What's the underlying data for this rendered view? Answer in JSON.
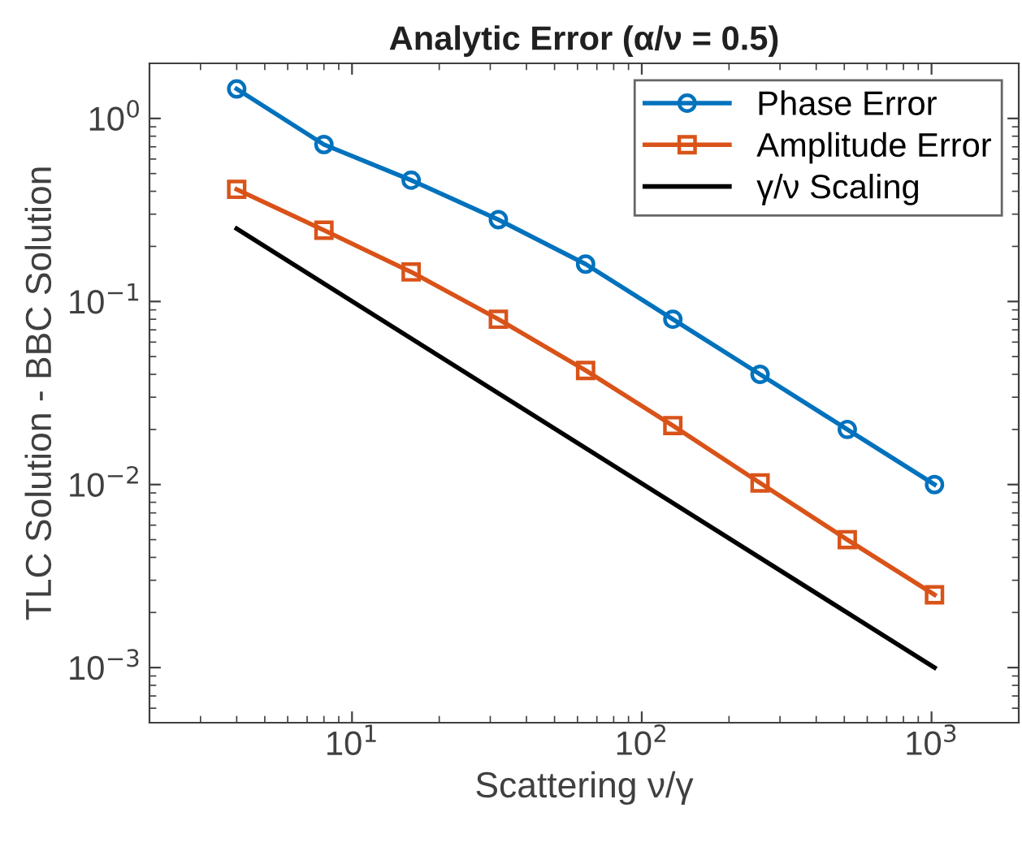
{
  "chart_data": {
    "type": "line",
    "title": "Analytic Error (α/ν = 0.5)",
    "xlabel": "Scattering ν/γ",
    "ylabel": "TLC Solution - BBC Solution",
    "log": "xy",
    "xlim": [
      2,
      2000
    ],
    "ylim": [
      0.0005,
      2
    ],
    "xticks": [
      {
        "value": 10,
        "label": "10$^{1}$"
      },
      {
        "value": 100,
        "label": "10$^{2}$"
      },
      {
        "value": 1000,
        "label": "10$^{3}$"
      }
    ],
    "yticks": [
      {
        "value": 0.001,
        "label": "10$^{−3}$"
      },
      {
        "value": 0.01,
        "label": "10$^{−2}$"
      },
      {
        "value": 0.1,
        "label": "10$^{−1}$"
      },
      {
        "value": 1,
        "label": "10$^{0}$"
      }
    ],
    "x": [
      4,
      8,
      16,
      32,
      64,
      128,
      256,
      512,
      1024
    ],
    "legend": "top right",
    "grid": false,
    "series": [
      {
        "name": "Phase Error",
        "color": "#0072bd",
        "marker": "circle",
        "values": [
          1.45,
          0.72,
          0.46,
          0.28,
          0.16,
          0.08,
          0.04,
          0.02,
          0.01
        ]
      },
      {
        "name": "Amplitude Error",
        "color": "#d95319",
        "marker": "square",
        "values": [
          0.41,
          0.245,
          0.145,
          0.08,
          0.042,
          0.021,
          0.0102,
          0.005,
          0.0025
        ]
      },
      {
        "name": "γ/ν Scaling",
        "color": "#000000",
        "marker": "none",
        "x": [
          4,
          1024
        ],
        "values": [
          0.25,
          0.001
        ]
      }
    ]
  }
}
